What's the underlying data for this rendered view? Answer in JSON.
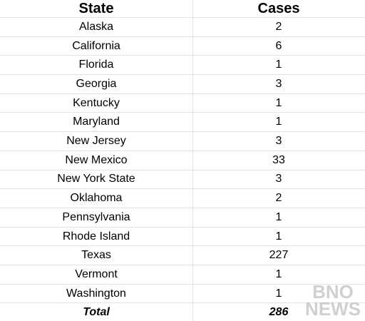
{
  "table": {
    "header": [
      "State",
      "Cases"
    ],
    "rows": [
      [
        "Alaska",
        2
      ],
      [
        "California",
        6
      ],
      [
        "Florida",
        1
      ],
      [
        "Georgia",
        3
      ],
      [
        "Kentucky",
        1
      ],
      [
        "Maryland",
        1
      ],
      [
        "New Jersey",
        3
      ],
      [
        "New Mexico",
        33
      ],
      [
        "New York State",
        3
      ],
      [
        "Oklahoma",
        2
      ],
      [
        "Pennsylvania",
        1
      ],
      [
        "Rhode Island",
        1
      ],
      [
        "Texas",
        227
      ],
      [
        "Vermont",
        1
      ],
      [
        "Washington",
        1
      ]
    ],
    "total": [
      "Total",
      286
    ]
  },
  "watermark": [
    "BNO",
    "NEWS"
  ]
}
